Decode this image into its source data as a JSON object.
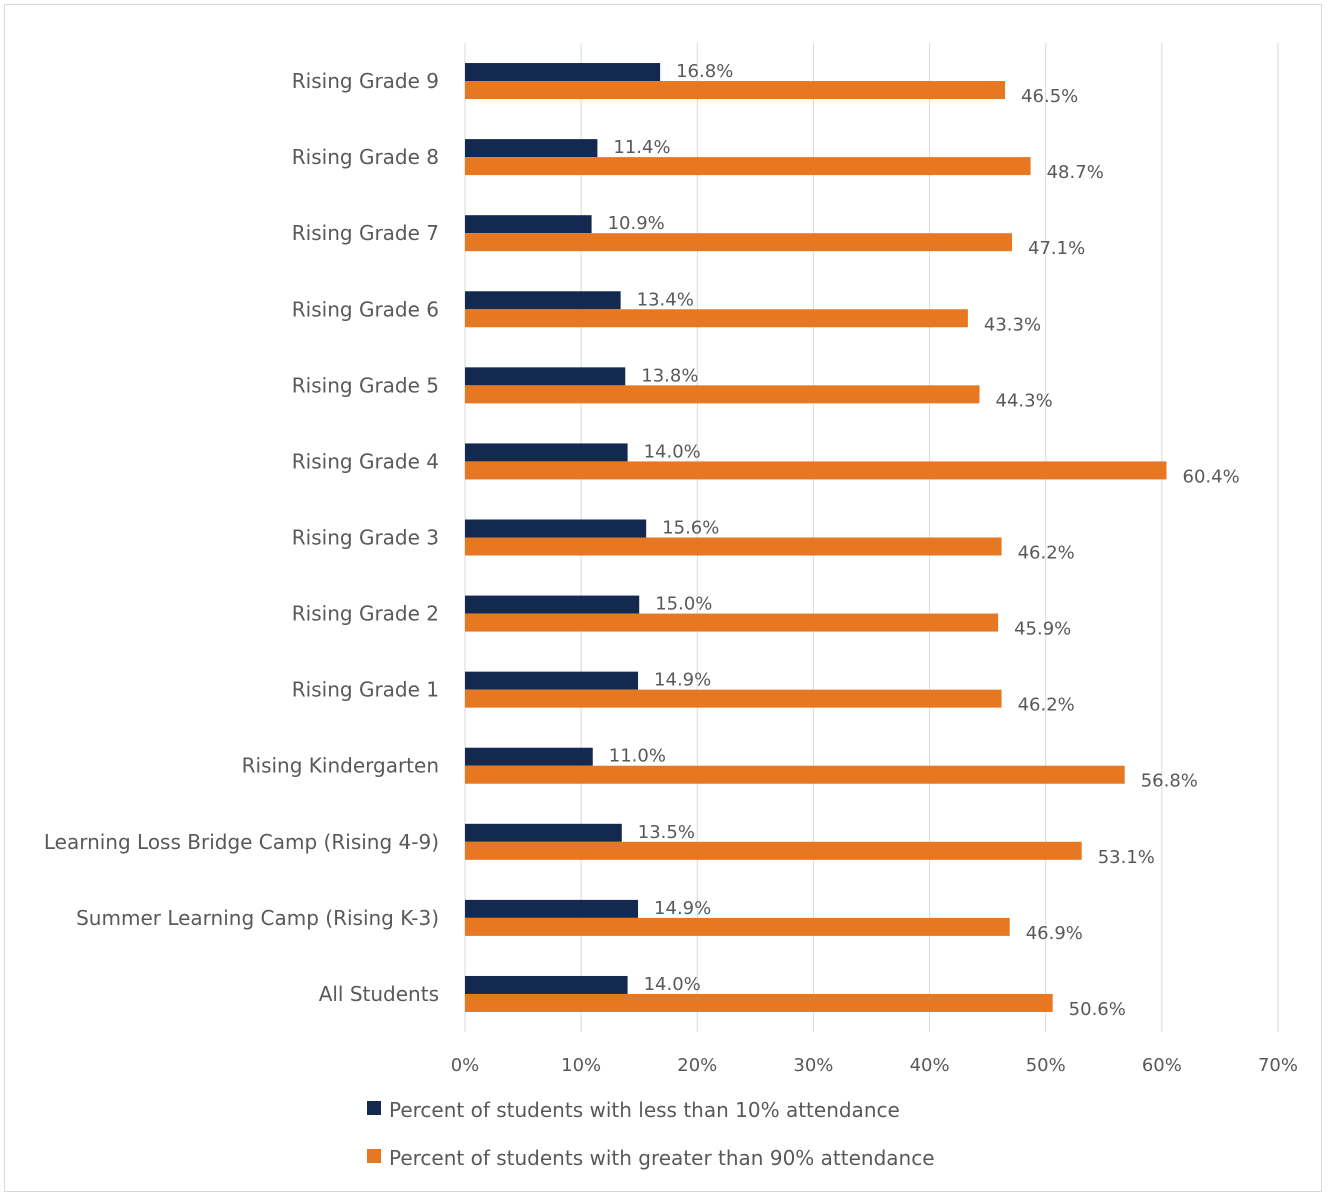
{
  "chart_data": {
    "type": "bar",
    "orientation": "horizontal",
    "title": "",
    "xlabel": "",
    "ylabel": "",
    "xlim": [
      0,
      70
    ],
    "x_ticks": [
      "0%",
      "10%",
      "20%",
      "30%",
      "40%",
      "50%",
      "60%",
      "70%"
    ],
    "grid": "vertical",
    "legend_position": "bottom",
    "categories": [
      "Rising Grade 9",
      "Rising Grade 8",
      "Rising Grade 7",
      "Rising Grade 6",
      "Rising Grade 5",
      "Rising Grade 4",
      "Rising Grade 3",
      "Rising Grade 2",
      "Rising Grade 1",
      "Rising Kindergarten",
      "Learning Loss Bridge Camp (Rising 4-9)",
      "Summer Learning Camp (Rising K-3)",
      "All Students"
    ],
    "series": [
      {
        "name": "Percent of students with less than 10% attendance",
        "color": "#14294f",
        "values": [
          16.8,
          11.4,
          10.9,
          13.4,
          13.8,
          14.0,
          15.6,
          15.0,
          14.9,
          11.0,
          13.5,
          14.9,
          14.0
        ],
        "labels": [
          "16.8%",
          "11.4%",
          "10.9%",
          "13.4%",
          "13.8%",
          "14.0%",
          "15.6%",
          "15.0%",
          "14.9%",
          "11.0%",
          "13.5%",
          "14.9%",
          "14.0%"
        ]
      },
      {
        "name": "Percent of students with greater than 90% attendance",
        "color": "#e87722",
        "values": [
          46.5,
          48.7,
          47.1,
          43.3,
          44.3,
          60.4,
          46.2,
          45.9,
          46.2,
          56.8,
          53.1,
          46.9,
          50.6
        ],
        "labels": [
          "46.5%",
          "48.7%",
          "47.1%",
          "43.3%",
          "44.3%",
          "60.4%",
          "46.2%",
          "45.9%",
          "46.2%",
          "56.8%",
          "53.1%",
          "46.9%",
          "50.6%"
        ]
      }
    ]
  }
}
